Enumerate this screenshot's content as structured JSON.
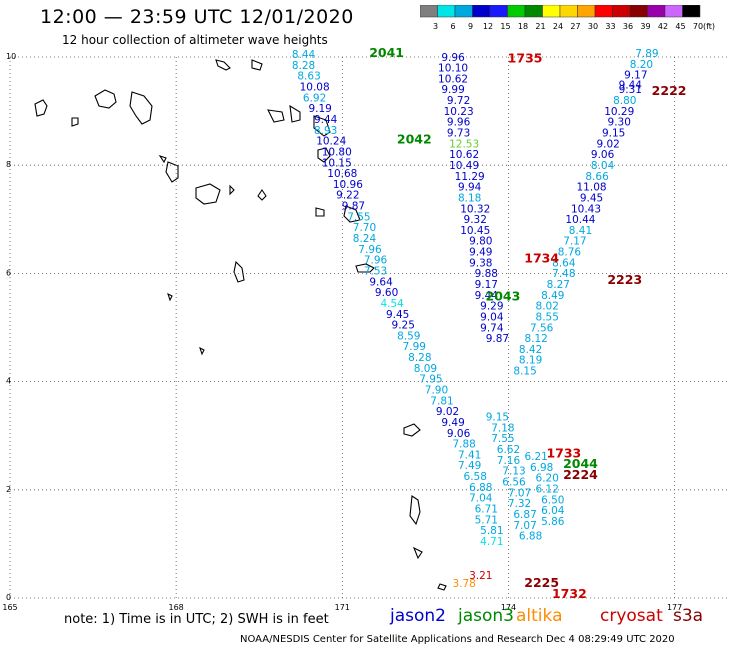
{
  "header": {
    "title": "12:00 — 23:59 UTC 12/01/2020",
    "subtitle": "12 hour collection of altimeter wave heights"
  },
  "colorbar": {
    "labels": [
      "3",
      "6",
      "9",
      "12",
      "15",
      "18",
      "21",
      "24",
      "27",
      "30",
      "33",
      "36",
      "39",
      "42",
      "45",
      "70"
    ],
    "unit": "(ft)",
    "colors": [
      "#7f7f7f",
      "#00e5e5",
      "#00a8e0",
      "#0000cc",
      "#1a1aff",
      "#00cc00",
      "#008800",
      "#ffff00",
      "#ffd700",
      "#ffa500",
      "#ff0000",
      "#cc0000",
      "#880000",
      "#9900aa",
      "#cc66ff",
      "#000000"
    ]
  },
  "footer": {
    "note": "note: 1) Time is in UTC; 2) SWH is in feet",
    "satellites": [
      {
        "name": "jason2",
        "color": "#0000cc"
      },
      {
        "name": "jason3",
        "color": "#008800"
      },
      {
        "name": "altika",
        "color": "#ff8c00"
      },
      {
        "name": "cryosat",
        "color": "#cc0000"
      },
      {
        "name": "s3a",
        "color": "#880000"
      }
    ],
    "credit": "NOAA/NESDIS Center for Satellite Applications and Research   Dec  4 08:29:49 UTC 2020"
  },
  "chart_data": {
    "type": "scatter",
    "title": "12:00 — 23:59 UTC 12/01/2020",
    "subtitle": "12 hour collection of altimeter wave heights",
    "xlabel": "",
    "ylabel": "",
    "xlim": [
      165,
      178
    ],
    "ylim": [
      0,
      10
    ],
    "x_ticks": [
      "165",
      "168",
      "171",
      "174",
      "177"
    ],
    "y_ticks": [
      "0",
      "2",
      "4",
      "6",
      "8",
      "10"
    ],
    "grid": true,
    "pass_labels": [
      {
        "text": "2041",
        "x": 171.8,
        "y": 10.0,
        "color": "#008800"
      },
      {
        "text": "1735",
        "x": 174.3,
        "y": 9.9,
        "color": "#cc0000"
      },
      {
        "text": "2222",
        "x": 176.9,
        "y": 9.3,
        "color": "#880000"
      },
      {
        "text": "2042",
        "x": 172.3,
        "y": 8.4,
        "color": "#008800"
      },
      {
        "text": "1734",
        "x": 174.6,
        "y": 6.2,
        "color": "#cc0000"
      },
      {
        "text": "2223",
        "x": 176.1,
        "y": 5.8,
        "color": "#880000"
      },
      {
        "text": "2043",
        "x": 173.9,
        "y": 5.5,
        "color": "#008800"
      },
      {
        "text": "1733",
        "x": 175.0,
        "y": 2.6,
        "color": "#cc0000"
      },
      {
        "text": "2044",
        "x": 175.3,
        "y": 2.4,
        "color": "#008800"
      },
      {
        "text": "2224",
        "x": 175.3,
        "y": 2.2,
        "color": "#880000"
      },
      {
        "text": "2225",
        "x": 174.6,
        "y": 0.2,
        "color": "#880000"
      },
      {
        "text": "1732",
        "x": 175.1,
        "y": 0.0,
        "color": "#cc0000"
      }
    ],
    "series": [
      {
        "name": "jason3 pass 2041-2044",
        "points": [
          {
            "x": 170.3,
            "y": 9.98,
            "v": "8.44",
            "c": "#00a8e0"
          },
          {
            "x": 170.3,
            "y": 9.78,
            "v": "8.28",
            "c": "#00a8e0"
          },
          {
            "x": 170.4,
            "y": 9.58,
            "v": "8.63",
            "c": "#00a8e0"
          },
          {
            "x": 170.5,
            "y": 9.38,
            "v": "10.08",
            "c": "#0000cc"
          },
          {
            "x": 170.5,
            "y": 9.18,
            "v": "6.92",
            "c": "#00a8e0"
          },
          {
            "x": 170.6,
            "y": 8.98,
            "v": "9.19",
            "c": "#0000cc"
          },
          {
            "x": 170.7,
            "y": 8.78,
            "v": "9.44",
            "c": "#0000cc"
          },
          {
            "x": 170.7,
            "y": 8.58,
            "v": "8.93",
            "c": "#00a8e0"
          },
          {
            "x": 170.8,
            "y": 8.38,
            "v": "10.24",
            "c": "#0000cc"
          },
          {
            "x": 170.9,
            "y": 8.18,
            "v": "10.80",
            "c": "#0000cc"
          },
          {
            "x": 170.9,
            "y": 7.98,
            "v": "10.15",
            "c": "#0000cc"
          },
          {
            "x": 171.0,
            "y": 7.78,
            "v": "10.68",
            "c": "#0000cc"
          },
          {
            "x": 171.1,
            "y": 7.58,
            "v": "10.96",
            "c": "#0000cc"
          },
          {
            "x": 171.1,
            "y": 7.38,
            "v": "9.22",
            "c": "#0000cc"
          },
          {
            "x": 171.2,
            "y": 7.18,
            "v": "9.87",
            "c": "#0000cc"
          },
          {
            "x": 171.3,
            "y": 6.98,
            "v": "7.55",
            "c": "#00a8e0"
          },
          {
            "x": 171.4,
            "y": 6.78,
            "v": "7.70",
            "c": "#00a8e0"
          },
          {
            "x": 171.4,
            "y": 6.58,
            "v": "8.24",
            "c": "#00a8e0"
          },
          {
            "x": 171.5,
            "y": 6.38,
            "v": "7.96",
            "c": "#00a8e0"
          },
          {
            "x": 171.6,
            "y": 6.18,
            "v": "7.96",
            "c": "#00a8e0"
          },
          {
            "x": 171.6,
            "y": 5.98,
            "v": "7.53",
            "c": "#00a8e0"
          },
          {
            "x": 171.7,
            "y": 5.78,
            "v": "9.64",
            "c": "#0000cc"
          },
          {
            "x": 171.8,
            "y": 5.58,
            "v": "9.60",
            "c": "#0000cc"
          },
          {
            "x": 171.9,
            "y": 5.38,
            "v": "4.54",
            "c": "#00e5e5"
          },
          {
            "x": 172.0,
            "y": 5.18,
            "v": "9.45",
            "c": "#0000cc"
          },
          {
            "x": 172.1,
            "y": 4.98,
            "v": "9.25",
            "c": "#0000cc"
          },
          {
            "x": 172.2,
            "y": 4.78,
            "v": "8.59",
            "c": "#00a8e0"
          },
          {
            "x": 172.3,
            "y": 4.58,
            "v": "7.99",
            "c": "#00a8e0"
          },
          {
            "x": 172.4,
            "y": 4.38,
            "v": "8.28",
            "c": "#00a8e0"
          },
          {
            "x": 172.5,
            "y": 4.18,
            "v": "8.09",
            "c": "#00a8e0"
          },
          {
            "x": 172.6,
            "y": 3.98,
            "v": "7.95",
            "c": "#00a8e0"
          },
          {
            "x": 172.7,
            "y": 3.78,
            "v": "7.90",
            "c": "#00a8e0"
          },
          {
            "x": 172.8,
            "y": 3.58,
            "v": "7.81",
            "c": "#00a8e0"
          },
          {
            "x": 172.9,
            "y": 3.38,
            "v": "9.02",
            "c": "#0000cc"
          },
          {
            "x": 173.0,
            "y": 3.18,
            "v": "9.49",
            "c": "#0000cc"
          },
          {
            "x": 173.1,
            "y": 2.98,
            "v": "9.06",
            "c": "#0000cc"
          },
          {
            "x": 173.2,
            "y": 2.78,
            "v": "7.88",
            "c": "#00a8e0"
          },
          {
            "x": 173.3,
            "y": 2.58,
            "v": "7.41",
            "c": "#00a8e0"
          },
          {
            "x": 173.3,
            "y": 2.38,
            "v": "7.49",
            "c": "#00a8e0"
          },
          {
            "x": 173.4,
            "y": 2.18,
            "v": "6.58",
            "c": "#00a8e0"
          },
          {
            "x": 173.5,
            "y": 1.98,
            "v": "6.88",
            "c": "#00a8e0"
          },
          {
            "x": 173.5,
            "y": 1.78,
            "v": "7.04",
            "c": "#00a8e0"
          },
          {
            "x": 173.6,
            "y": 1.58,
            "v": "6.71",
            "c": "#00a8e0"
          },
          {
            "x": 173.6,
            "y": 1.38,
            "v": "5.71",
            "c": "#00a8e0"
          },
          {
            "x": 173.7,
            "y": 1.18,
            "v": "5.81",
            "c": "#00a8e0"
          },
          {
            "x": 173.7,
            "y": 0.98,
            "v": "4.71",
            "c": "#00e5e5"
          }
        ]
      },
      {
        "name": "jason2 pass 1735-1732",
        "points": [
          {
            "x": 173.0,
            "y": 9.93,
            "v": "9.96",
            "c": "#0000cc"
          },
          {
            "x": 173.0,
            "y": 9.73,
            "v": "10.10",
            "c": "#0000cc"
          },
          {
            "x": 173.0,
            "y": 9.53,
            "v": "10.62",
            "c": "#0000cc"
          },
          {
            "x": 173.0,
            "y": 9.33,
            "v": "9.99",
            "c": "#0000cc"
          },
          {
            "x": 173.1,
            "y": 9.13,
            "v": "9.72",
            "c": "#0000cc"
          },
          {
            "x": 173.1,
            "y": 8.93,
            "v": "10.23",
            "c": "#0000cc"
          },
          {
            "x": 173.1,
            "y": 8.73,
            "v": "9.96",
            "c": "#0000cc"
          },
          {
            "x": 173.1,
            "y": 8.53,
            "v": "9.73",
            "c": "#0000cc"
          },
          {
            "x": 173.2,
            "y": 8.33,
            "v": "12.53",
            "c": "#66cc33"
          },
          {
            "x": 173.2,
            "y": 8.13,
            "v": "10.62",
            "c": "#0000cc"
          },
          {
            "x": 173.2,
            "y": 7.93,
            "v": "10.49",
            "c": "#0000cc"
          },
          {
            "x": 173.3,
            "y": 7.73,
            "v": "11.29",
            "c": "#0000cc"
          },
          {
            "x": 173.3,
            "y": 7.53,
            "v": "9.94",
            "c": "#0000cc"
          },
          {
            "x": 173.3,
            "y": 7.33,
            "v": "8.18",
            "c": "#00a8e0"
          },
          {
            "x": 173.4,
            "y": 7.13,
            "v": "10.32",
            "c": "#0000cc"
          },
          {
            "x": 173.4,
            "y": 6.93,
            "v": "9.32",
            "c": "#0000cc"
          },
          {
            "x": 173.4,
            "y": 6.73,
            "v": "10.45",
            "c": "#0000cc"
          },
          {
            "x": 173.5,
            "y": 6.53,
            "v": "9.80",
            "c": "#0000cc"
          },
          {
            "x": 173.5,
            "y": 6.33,
            "v": "9.49",
            "c": "#0000cc"
          },
          {
            "x": 173.5,
            "y": 6.13,
            "v": "9.38",
            "c": "#0000cc"
          },
          {
            "x": 173.6,
            "y": 5.93,
            "v": "9.88",
            "c": "#0000cc"
          },
          {
            "x": 173.6,
            "y": 5.73,
            "v": "9.17",
            "c": "#0000cc"
          },
          {
            "x": 173.6,
            "y": 5.53,
            "v": "9.44",
            "c": "#0000cc"
          },
          {
            "x": 173.7,
            "y": 5.33,
            "v": "9.29",
            "c": "#0000cc"
          },
          {
            "x": 173.7,
            "y": 5.13,
            "v": "9.04",
            "c": "#0000cc"
          },
          {
            "x": 173.7,
            "y": 4.93,
            "v": "9.74",
            "c": "#0000cc"
          },
          {
            "x": 173.8,
            "y": 4.73,
            "v": "9.87",
            "c": "#0000cc"
          },
          {
            "x": 173.8,
            "y": 3.28,
            "v": "9.15",
            "c": "#00a8e0"
          },
          {
            "x": 173.9,
            "y": 3.08,
            "v": "7.18",
            "c": "#00a8e0"
          },
          {
            "x": 173.9,
            "y": 2.88,
            "v": "7.55",
            "c": "#00a8e0"
          },
          {
            "x": 174.0,
            "y": 2.68,
            "v": "6.62",
            "c": "#00a8e0"
          },
          {
            "x": 174.0,
            "y": 2.48,
            "v": "7.16",
            "c": "#00a8e0"
          },
          {
            "x": 174.1,
            "y": 2.28,
            "v": "7.13",
            "c": "#00a8e0"
          },
          {
            "x": 174.1,
            "y": 2.08,
            "v": "6.56",
            "c": "#00a8e0"
          },
          {
            "x": 174.2,
            "y": 1.88,
            "v": "7.07",
            "c": "#00a8e0"
          },
          {
            "x": 174.2,
            "y": 1.68,
            "v": "7.32",
            "c": "#00a8e0"
          },
          {
            "x": 174.3,
            "y": 1.48,
            "v": "6.87",
            "c": "#00a8e0"
          },
          {
            "x": 174.3,
            "y": 1.28,
            "v": "7.07",
            "c": "#00a8e0"
          },
          {
            "x": 174.4,
            "y": 1.08,
            "v": "6.88",
            "c": "#00a8e0"
          }
        ]
      },
      {
        "name": "s3a pass 2222-2225",
        "points": [
          {
            "x": 176.5,
            "y": 10.0,
            "v": "7.89",
            "c": "#00a8e0"
          },
          {
            "x": 176.4,
            "y": 9.8,
            "v": "8.20",
            "c": "#00a8e0"
          },
          {
            "x": 176.3,
            "y": 9.6,
            "v": "9.17",
            "c": "#0000cc"
          },
          {
            "x": 176.2,
            "y": 9.42,
            "v": "9.44",
            "c": "#0000cc"
          },
          {
            "x": 176.2,
            "y": 9.33,
            "v": "9.31",
            "c": "#0000cc"
          },
          {
            "x": 176.1,
            "y": 9.13,
            "v": "8.80",
            "c": "#00a8e0"
          },
          {
            "x": 176.0,
            "y": 8.93,
            "v": "10.29",
            "c": "#0000cc"
          },
          {
            "x": 176.0,
            "y": 8.73,
            "v": "9.30",
            "c": "#0000cc"
          },
          {
            "x": 175.9,
            "y": 8.53,
            "v": "9.15",
            "c": "#0000cc"
          },
          {
            "x": 175.8,
            "y": 8.33,
            "v": "9.02",
            "c": "#0000cc"
          },
          {
            "x": 175.7,
            "y": 8.13,
            "v": "9.06",
            "c": "#0000cc"
          },
          {
            "x": 175.7,
            "y": 7.93,
            "v": "8.04",
            "c": "#00a8e0"
          },
          {
            "x": 175.6,
            "y": 7.73,
            "v": "8.66",
            "c": "#00a8e0"
          },
          {
            "x": 175.5,
            "y": 7.53,
            "v": "11.08",
            "c": "#0000cc"
          },
          {
            "x": 175.5,
            "y": 7.33,
            "v": "9.45",
            "c": "#0000cc"
          },
          {
            "x": 175.4,
            "y": 7.13,
            "v": "10.43",
            "c": "#0000cc"
          },
          {
            "x": 175.3,
            "y": 6.93,
            "v": "10.44",
            "c": "#0000cc"
          },
          {
            "x": 175.3,
            "y": 6.73,
            "v": "8.41",
            "c": "#00a8e0"
          },
          {
            "x": 175.2,
            "y": 6.53,
            "v": "7.17",
            "c": "#00a8e0"
          },
          {
            "x": 175.1,
            "y": 6.33,
            "v": "8.76",
            "c": "#00a8e0"
          },
          {
            "x": 175.0,
            "y": 6.13,
            "v": "8.64",
            "c": "#00a8e0"
          },
          {
            "x": 175.0,
            "y": 5.93,
            "v": "7.48",
            "c": "#00a8e0"
          },
          {
            "x": 174.9,
            "y": 5.73,
            "v": "8.27",
            "c": "#00a8e0"
          },
          {
            "x": 174.8,
            "y": 5.53,
            "v": "8.49",
            "c": "#00a8e0"
          },
          {
            "x": 174.7,
            "y": 5.33,
            "v": "8.02",
            "c": "#00a8e0"
          },
          {
            "x": 174.7,
            "y": 5.13,
            "v": "8.55",
            "c": "#00a8e0"
          },
          {
            "x": 174.6,
            "y": 4.93,
            "v": "7.56",
            "c": "#00a8e0"
          },
          {
            "x": 174.5,
            "y": 4.73,
            "v": "8.12",
            "c": "#00a8e0"
          },
          {
            "x": 174.4,
            "y": 4.53,
            "v": "8.42",
            "c": "#00a8e0"
          },
          {
            "x": 174.4,
            "y": 4.33,
            "v": "8.19",
            "c": "#00a8e0"
          },
          {
            "x": 174.3,
            "y": 4.13,
            "v": "8.15",
            "c": "#00a8e0"
          },
          {
            "x": 174.5,
            "y": 2.55,
            "v": "6.21",
            "c": "#00a8e0"
          },
          {
            "x": 174.6,
            "y": 2.35,
            "v": "6.98",
            "c": "#00a8e0"
          },
          {
            "x": 174.7,
            "y": 2.15,
            "v": "6.20",
            "c": "#00a8e0"
          },
          {
            "x": 174.7,
            "y": 1.95,
            "v": "6.12",
            "c": "#00a8e0"
          },
          {
            "x": 174.8,
            "y": 1.75,
            "v": "6.50",
            "c": "#00a8e0"
          },
          {
            "x": 174.8,
            "y": 1.55,
            "v": "6.04",
            "c": "#00a8e0"
          },
          {
            "x": 174.8,
            "y": 1.35,
            "v": "5.86",
            "c": "#00a8e0"
          }
        ]
      },
      {
        "name": "altika/cryosat near 174E",
        "points": [
          {
            "x": 173.5,
            "y": 0.35,
            "v": "3.21",
            "c": "#cc0000"
          },
          {
            "x": 173.2,
            "y": 0.2,
            "v": "3.78",
            "c": "#ff8c00"
          }
        ]
      }
    ]
  }
}
